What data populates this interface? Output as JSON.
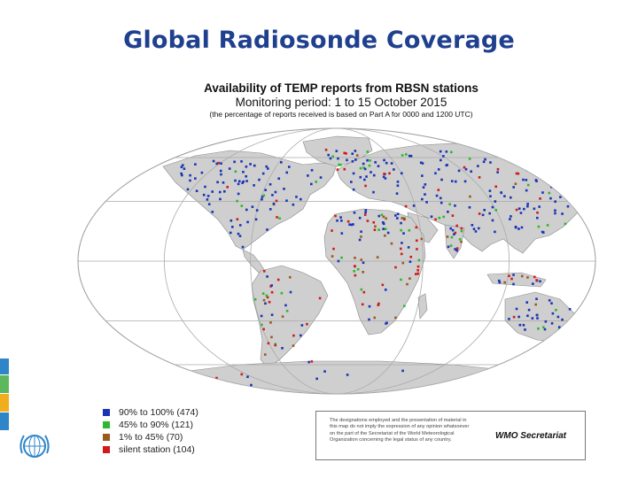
{
  "slide_title": "Global Radiosonde Coverage",
  "map_header": {
    "line1": "Availability of TEMP reports from RBSN stations",
    "line2": "Monitoring period: 1 to 15 October 2015",
    "line3": "(the percentage of reports received is based on Part A for 0000 and 1200 UTC)"
  },
  "legend": [
    {
      "label": "90% to 100% (474)",
      "color": "#1a34b8"
    },
    {
      "label": "45% to 90% (121)",
      "color": "#2db82d"
    },
    {
      "label": "1% to 45% (70)",
      "color": "#9a5a1c"
    },
    {
      "label": "silent station (104)",
      "color": "#d11a1a"
    }
  ],
  "disclaimer": {
    "text": "The designations employed and the presentation of material in this map do not imply the expression of any opinion whatsoever on the part of the Secretariat of the World Meteorological Organization concerning the legal status of any country.",
    "credit": "WMO Secretariat"
  },
  "side_bar_colors": [
    "#2e86c9",
    "#5cb85c",
    "#f0ad1e",
    "#2e86c9"
  ],
  "logo": {
    "icon": "wmo-emblem-icon"
  },
  "map_colors": {
    "land": "#cfcfcf",
    "ocean": "#ffffff",
    "graticule": "#aaaaaa"
  }
}
